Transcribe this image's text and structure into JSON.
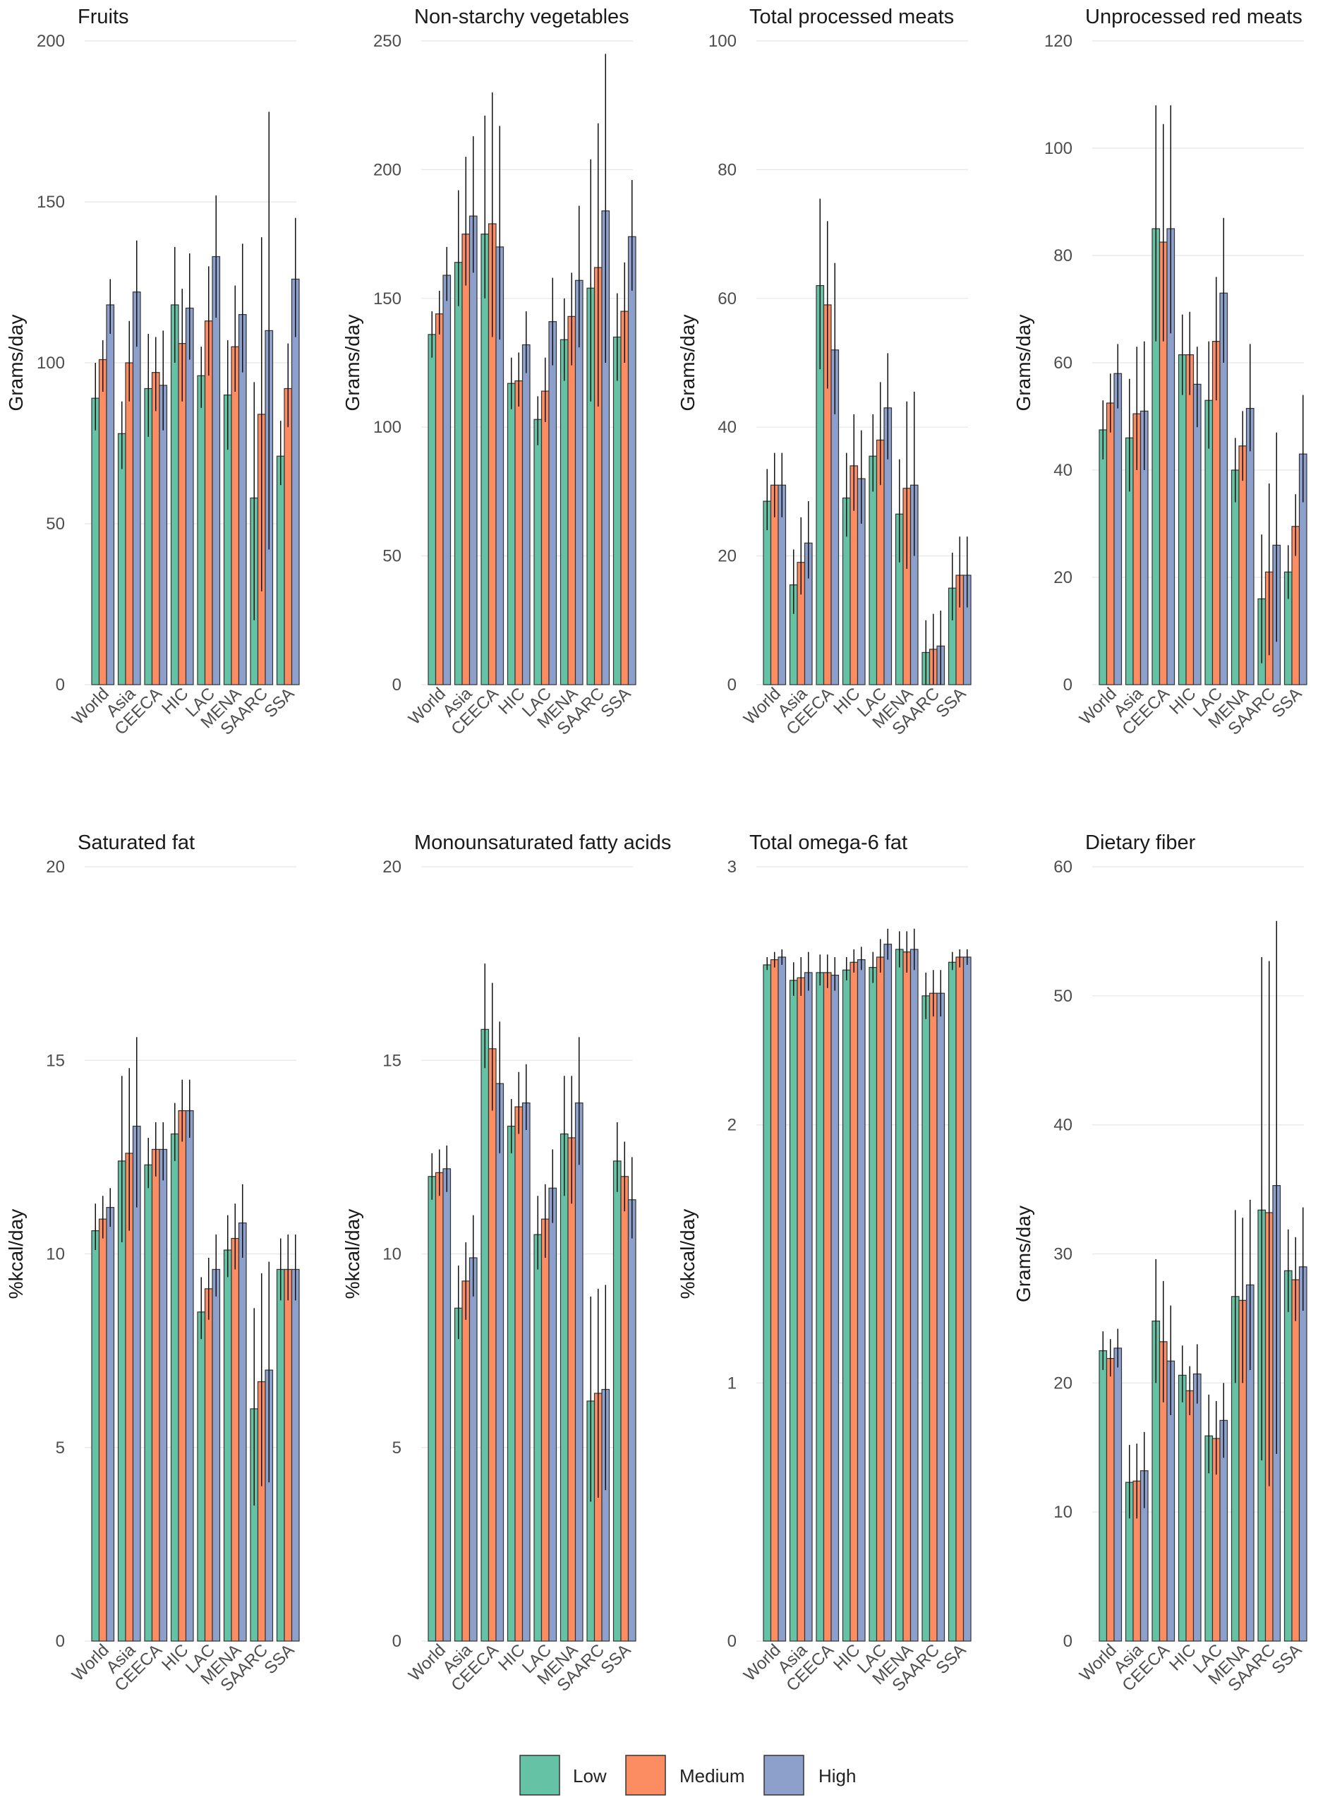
{
  "legend": {
    "items": [
      {
        "label": "Low",
        "color": "#66c2a5"
      },
      {
        "label": "Medium",
        "color": "#fc8d62"
      },
      {
        "label": "High",
        "color": "#8da0cb"
      }
    ]
  },
  "chart_data": [
    {
      "type": "bar",
      "title": "Fruits",
      "xlabel": "",
      "ylabel": "Grams/day",
      "ylim": [
        0,
        200
      ],
      "yticks": [
        0,
        50,
        100,
        150,
        200
      ],
      "categories": [
        "World",
        "Asia",
        "CEECA",
        "HIC",
        "LAC",
        "MENA",
        "SAARC",
        "SSA"
      ],
      "series": [
        {
          "name": "Low",
          "values": [
            89,
            78,
            92,
            118,
            96,
            90,
            58,
            71
          ],
          "lower": [
            79,
            67,
            77,
            100,
            86,
            73,
            20,
            62
          ],
          "upper": [
            100,
            88,
            109,
            136,
            105,
            107,
            94,
            82
          ]
        },
        {
          "name": "Medium",
          "values": [
            101,
            100,
            97,
            106,
            113,
            105,
            84,
            92
          ],
          "lower": [
            91,
            88,
            85,
            88,
            96,
            91,
            29,
            80
          ],
          "upper": [
            107,
            113,
            108,
            123,
            130,
            124,
            139,
            106
          ]
        },
        {
          "name": "High",
          "values": [
            118,
            122,
            93,
            117,
            133,
            115,
            110,
            126
          ],
          "lower": [
            109,
            105,
            79,
            101,
            114,
            97,
            42,
            108
          ],
          "upper": [
            126,
            138,
            110,
            134,
            152,
            137,
            178,
            145
          ]
        }
      ]
    },
    {
      "type": "bar",
      "title": "Non-starchy vegetables",
      "xlabel": "",
      "ylabel": "Grams/day",
      "ylim": [
        0,
        250
      ],
      "yticks": [
        0,
        50,
        100,
        150,
        200,
        250
      ],
      "categories": [
        "World",
        "Asia",
        "CEECA",
        "HIC",
        "LAC",
        "MENA",
        "SAARC",
        "SSA"
      ],
      "series": [
        {
          "name": "Low",
          "values": [
            136,
            164,
            175,
            117,
            103,
            134,
            154,
            135
          ],
          "lower": [
            127,
            147,
            150,
            107,
            93,
            118,
            110,
            118
          ],
          "upper": [
            145,
            192,
            221,
            127,
            112,
            150,
            204,
            152
          ]
        },
        {
          "name": "Medium",
          "values": [
            144,
            175,
            179,
            118,
            114,
            143,
            162,
            145
          ],
          "lower": [
            136,
            155,
            135,
            108,
            102,
            124,
            108,
            125
          ],
          "upper": [
            153,
            205,
            230,
            129,
            127,
            160,
            218,
            164
          ]
        },
        {
          "name": "High",
          "values": [
            159,
            182,
            170,
            132,
            141,
            157,
            184,
            174
          ],
          "lower": [
            149,
            160,
            134,
            121,
            124,
            131,
            125,
            153
          ],
          "upper": [
            170,
            213,
            217,
            145,
            158,
            186,
            245,
            196
          ]
        }
      ]
    },
    {
      "type": "bar",
      "title": "Total processed meats",
      "xlabel": "",
      "ylabel": "Grams/day",
      "ylim": [
        0,
        100
      ],
      "yticks": [
        0,
        20,
        40,
        60,
        80,
        100
      ],
      "categories": [
        "World",
        "Asia",
        "CEECA",
        "HIC",
        "LAC",
        "MENA",
        "SAARC",
        "SSA"
      ],
      "series": [
        {
          "name": "Low",
          "values": [
            28.5,
            15.5,
            62,
            29,
            35.5,
            26.5,
            5,
            15
          ],
          "lower": [
            24,
            11,
            49,
            23,
            30,
            19,
            0,
            10
          ],
          "upper": [
            33.5,
            21,
            75.5,
            36,
            42,
            35,
            10,
            20.5
          ]
        },
        {
          "name": "Medium",
          "values": [
            31,
            19,
            59,
            34,
            38,
            30.5,
            5.5,
            17
          ],
          "lower": [
            26,
            14,
            46,
            27,
            31,
            18,
            0,
            12
          ],
          "upper": [
            36,
            26,
            72,
            42,
            47,
            44,
            11,
            23
          ]
        },
        {
          "name": "High",
          "values": [
            31,
            22,
            52,
            32,
            43,
            31,
            6,
            17
          ],
          "lower": [
            26,
            16.5,
            42,
            25,
            35,
            20,
            0,
            12
          ],
          "upper": [
            36,
            28.5,
            65.5,
            39.5,
            51.5,
            45.5,
            11.5,
            23
          ]
        }
      ]
    },
    {
      "type": "bar",
      "title": "Unprocessed red meats",
      "xlabel": "",
      "ylabel": "Grams/day",
      "ylim": [
        0,
        120
      ],
      "yticks": [
        0,
        20,
        40,
        60,
        80,
        100,
        120
      ],
      "categories": [
        "World",
        "Asia",
        "CEECA",
        "HIC",
        "LAC",
        "MENA",
        "SAARC",
        "SSA"
      ],
      "series": [
        {
          "name": "Low",
          "values": [
            47.5,
            46,
            85,
            61.5,
            53,
            40,
            16,
            21
          ],
          "lower": [
            42,
            36,
            64,
            54,
            44,
            34,
            4,
            16
          ],
          "upper": [
            53,
            57,
            108,
            69,
            64,
            46,
            28,
            26
          ]
        },
        {
          "name": "Medium",
          "values": [
            52.5,
            50.5,
            82.5,
            61.5,
            64,
            44.5,
            21,
            29.5
          ],
          "lower": [
            47,
            40,
            64,
            54,
            53,
            38,
            5.5,
            24
          ],
          "upper": [
            58,
            63,
            104.5,
            69.5,
            76,
            51,
            37.5,
            35.5
          ]
        },
        {
          "name": "High",
          "values": [
            58,
            51,
            85,
            56,
            73,
            51.5,
            26,
            43
          ],
          "lower": [
            51.5,
            40,
            65.5,
            48,
            60,
            43.5,
            8,
            34
          ],
          "upper": [
            63.5,
            64,
            108,
            63,
            87,
            63.5,
            47,
            54
          ]
        }
      ]
    },
    {
      "type": "bar",
      "title": "Saturated fat",
      "xlabel": "",
      "ylabel": "%kcal/day",
      "ylim": [
        0,
        20
      ],
      "yticks": [
        0,
        5,
        10,
        15,
        20
      ],
      "categories": [
        "World",
        "Asia",
        "CEECA",
        "HIC",
        "LAC",
        "MENA",
        "SAARC",
        "SSA"
      ],
      "series": [
        {
          "name": "Low",
          "values": [
            10.6,
            12.4,
            12.3,
            13.1,
            8.5,
            10.1,
            6.0,
            9.6
          ],
          "lower": [
            10.1,
            10.3,
            11.7,
            12.4,
            7.8,
            9.4,
            3.5,
            8.8
          ],
          "upper": [
            11.3,
            14.6,
            13.0,
            13.9,
            9.4,
            11.0,
            8.6,
            10.4
          ]
        },
        {
          "name": "Medium",
          "values": [
            10.9,
            12.6,
            12.7,
            13.7,
            9.1,
            10.4,
            6.7,
            9.6
          ],
          "lower": [
            10.4,
            10.6,
            12.0,
            12.9,
            8.3,
            9.6,
            4.0,
            8.8
          ],
          "upper": [
            11.5,
            14.8,
            13.4,
            14.5,
            9.9,
            11.3,
            9.5,
            10.5
          ]
        },
        {
          "name": "High",
          "values": [
            11.2,
            13.3,
            12.7,
            13.7,
            9.6,
            10.8,
            7.0,
            9.6
          ],
          "lower": [
            10.7,
            11.2,
            11.9,
            13.0,
            8.9,
            9.9,
            4.1,
            8.8
          ],
          "upper": [
            11.7,
            15.6,
            13.4,
            14.5,
            10.5,
            11.8,
            9.8,
            10.5
          ]
        }
      ]
    },
    {
      "type": "bar",
      "title": "Monounsaturated fatty acids",
      "xlabel": "",
      "ylabel": "%kcal/day",
      "ylim": [
        0,
        20
      ],
      "yticks": [
        0,
        5,
        10,
        15,
        20
      ],
      "categories": [
        "World",
        "Asia",
        "CEECA",
        "HIC",
        "LAC",
        "MENA",
        "SAARC",
        "SSA"
      ],
      "series": [
        {
          "name": "Low",
          "values": [
            12.0,
            8.6,
            15.8,
            13.3,
            10.5,
            13.1,
            6.2,
            12.4
          ],
          "lower": [
            11.4,
            7.8,
            14.8,
            12.6,
            9.6,
            11.5,
            3.6,
            11.6
          ],
          "upper": [
            12.6,
            9.7,
            17.5,
            14.0,
            11.5,
            14.6,
            8.9,
            13.4
          ]
        },
        {
          "name": "Medium",
          "values": [
            12.1,
            9.3,
            15.3,
            13.8,
            10.9,
            13.0,
            6.4,
            12.0
          ],
          "lower": [
            11.5,
            8.3,
            13.7,
            13.1,
            9.9,
            11.3,
            3.7,
            11.1
          ],
          "upper": [
            12.7,
            10.3,
            17.0,
            14.7,
            11.8,
            14.6,
            9.1,
            12.9
          ]
        },
        {
          "name": "High",
          "values": [
            12.2,
            9.9,
            14.4,
            13.9,
            11.7,
            13.9,
            6.5,
            11.4
          ],
          "lower": [
            11.6,
            8.9,
            12.6,
            13.2,
            10.8,
            12.3,
            3.9,
            10.4
          ],
          "upper": [
            12.8,
            11.0,
            16.0,
            14.9,
            12.7,
            15.6,
            9.2,
            12.5
          ]
        }
      ]
    },
    {
      "type": "bar",
      "title": "Total omega-6 fat",
      "xlabel": "",
      "ylabel": "%kcal/day",
      "ylim": [
        0,
        3
      ],
      "yticks": [
        0,
        1,
        2,
        3
      ],
      "categories": [
        "World",
        "Asia",
        "CEECA",
        "HIC",
        "LAC",
        "MENA",
        "SAARC",
        "SSA"
      ],
      "series": [
        {
          "name": "Low",
          "values": [
            2.62,
            2.56,
            2.59,
            2.6,
            2.61,
            2.68,
            2.5,
            2.63
          ],
          "lower": [
            2.6,
            2.5,
            2.54,
            2.56,
            2.55,
            2.61,
            2.41,
            2.6
          ],
          "upper": [
            2.65,
            2.63,
            2.66,
            2.65,
            2.67,
            2.75,
            2.59,
            2.67
          ]
        },
        {
          "name": "Medium",
          "values": [
            2.64,
            2.57,
            2.59,
            2.63,
            2.65,
            2.67,
            2.51,
            2.65
          ],
          "lower": [
            2.61,
            2.5,
            2.53,
            2.59,
            2.59,
            2.59,
            2.42,
            2.61
          ],
          "upper": [
            2.67,
            2.65,
            2.66,
            2.68,
            2.72,
            2.75,
            2.6,
            2.68
          ]
        },
        {
          "name": "High",
          "values": [
            2.65,
            2.59,
            2.58,
            2.64,
            2.7,
            2.68,
            2.51,
            2.65
          ],
          "lower": [
            2.62,
            2.52,
            2.52,
            2.6,
            2.64,
            2.6,
            2.42,
            2.62
          ],
          "upper": [
            2.68,
            2.67,
            2.65,
            2.69,
            2.76,
            2.76,
            2.6,
            2.68
          ]
        }
      ]
    },
    {
      "type": "bar",
      "title": "Dietary fiber",
      "xlabel": "",
      "ylabel": "Grams/day",
      "ylim": [
        0,
        60
      ],
      "yticks": [
        0,
        10,
        20,
        30,
        40,
        50,
        60
      ],
      "categories": [
        "World",
        "Asia",
        "CEECA",
        "HIC",
        "LAC",
        "MENA",
        "SAARC",
        "SSA"
      ],
      "series": [
        {
          "name": "Low",
          "values": [
            22.5,
            12.3,
            24.8,
            20.6,
            15.9,
            26.7,
            33.4,
            28.7
          ],
          "lower": [
            21.0,
            9.5,
            20.0,
            18.5,
            13.0,
            20.0,
            14.0,
            25.5
          ],
          "upper": [
            24.0,
            15.2,
            29.6,
            22.9,
            19.1,
            33.4,
            53.0,
            31.9
          ]
        },
        {
          "name": "Medium",
          "values": [
            21.9,
            12.4,
            23.2,
            19.4,
            15.7,
            26.4,
            33.2,
            28.0
          ],
          "lower": [
            20.5,
            9.5,
            18.5,
            17.5,
            12.9,
            20.0,
            12.0,
            24.8
          ],
          "upper": [
            23.4,
            15.3,
            27.9,
            21.3,
            18.6,
            32.8,
            52.7,
            31.3
          ]
        },
        {
          "name": "High",
          "values": [
            22.7,
            13.2,
            21.7,
            20.7,
            17.1,
            27.6,
            35.3,
            29.0
          ],
          "lower": [
            21.2,
            10.3,
            17.5,
            18.4,
            14.2,
            21.0,
            14.5,
            25.6
          ],
          "upper": [
            24.2,
            16.2,
            26.0,
            23.0,
            20.0,
            34.2,
            55.8,
            33.6
          ]
        }
      ]
    }
  ]
}
